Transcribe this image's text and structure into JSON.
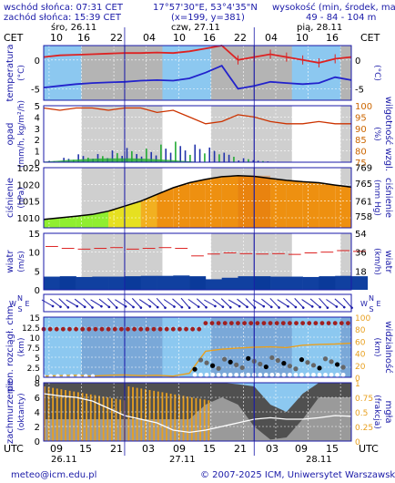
{
  "header": {
    "sunrise": "wschód słońca: 07:31 CET",
    "sunset": "zachód słońca: 15:39 CET",
    "coords": "17°57'30\"E, 53°4'35\"N",
    "grid": "(x=199, y=381)",
    "elevation_label": "wysokość (min, środek, max)",
    "elevation_values": "49 - 84 - 104 m"
  },
  "days": [
    "śro, 26.11",
    "czw, 27.11",
    "pią, 28.11"
  ],
  "tz_left": "CET",
  "tz_right": "CET",
  "tz_bottom_left": "UTC",
  "tz_bottom_right": "UTC",
  "cet_ticks": [
    "10",
    "16",
    "22",
    "04",
    "10",
    "16",
    "22",
    "04",
    "10",
    "16"
  ],
  "utc_ticks": [
    "09",
    "15",
    "21",
    "03",
    "09",
    "15",
    "21",
    "03",
    "09",
    "15"
  ],
  "utc_days": [
    "26.11",
    "27.11",
    "28.11"
  ],
  "footer": {
    "email": "meteo@icm.edu.pl",
    "copyright": "© 2007-2025 ICM, Uniwersytet Warszawski"
  },
  "panel_labels": {
    "temperature": [
      "temperatura",
      "(°C)"
    ],
    "temperature_right": "(°C)",
    "precip": [
      "opad",
      "(mm/h, kg/m²/h)"
    ],
    "humidity_right": [
      "(%)",
      "wilgotność wzgl."
    ],
    "pressure": [
      "ciśnienie",
      "(hPa)"
    ],
    "pressure_right": [
      "(mm Hg)",
      "ciśnienie"
    ],
    "wind": [
      "wiatr",
      "(m/s)"
    ],
    "wind_right": [
      "(km/h)",
      "wiatr"
    ],
    "visibility": [
      "pion. rozciągł. chm.",
      "(km)"
    ],
    "visibility_right": [
      "(km)",
      "widzialność"
    ],
    "cloud": [
      "zachmurzenie",
      "(oktanty)"
    ],
    "fog_right": [
      "(frakcja)",
      "mgła"
    ]
  },
  "colors": {
    "frame_blue": "#1a1aa8",
    "sky_blue": "#8cc8f0",
    "night_gray": "#b4b4b4",
    "temp_red": "#dd2222",
    "dew_blue": "#2222cc",
    "humidity_red": "#cc3300",
    "precip_blue": "#2233aa",
    "precip_green": "#22aa33",
    "wind_dark": "#1040a0",
    "cloud_dark": "#505050",
    "fog_orange": "#e8a020"
  },
  "chart_data": [
    {
      "type": "line",
      "name": "temperature",
      "x_hours": [
        0,
        3,
        6,
        9,
        12,
        15,
        18,
        21,
        24,
        27,
        30,
        33,
        36,
        39,
        42,
        45,
        48,
        51,
        54,
        57
      ],
      "series": [
        {
          "values": [
            0.5,
            0.8,
            0.9,
            1.0,
            1.1,
            1.2,
            1.2,
            1.3,
            1.2,
            1.5,
            2.0,
            2.5,
            0.0,
            0.5,
            1.0,
            0.5,
            0.0,
            -0.5,
            0.2,
            0.5
          ]
        },
        {
          "values": [
            -4.8,
            -4.5,
            -4.2,
            -4.0,
            -3.9,
            -3.8,
            -3.6,
            -3.5,
            -3.6,
            -3.2,
            -2.2,
            -1.0,
            -5.0,
            -4.5,
            -3.8,
            -4.0,
            -4.2,
            -4.0,
            -3.0,
            -3.5
          ]
        }
      ],
      "yticks": [
        0,
        -5
      ],
      "ytick_labels": [
        "0",
        "-5"
      ]
    },
    {
      "type": "bar",
      "name": "precipitation",
      "ylim": [
        0,
        5
      ],
      "yticks": [
        0,
        1,
        2,
        3,
        4,
        5
      ],
      "ytick_labels": [
        "0",
        "1",
        "2",
        "3",
        "4",
        "5"
      ],
      "y2ticks": [
        75,
        80,
        85,
        90,
        95,
        100
      ],
      "y2tick_labels": [
        "75",
        "80",
        "85",
        "90",
        "95",
        "100"
      ],
      "precip_values": [
        0.1,
        0.3,
        0.5,
        0.6,
        0.8,
        0.9,
        1.0,
        1.2,
        1.3,
        1.3,
        1.0,
        0.6,
        0.3,
        0.1,
        0,
        0,
        0,
        0,
        0,
        0
      ],
      "humidity": [
        99,
        98,
        99,
        99,
        98,
        99,
        99,
        97,
        98,
        95,
        92,
        93,
        96,
        95,
        93,
        92,
        92,
        93,
        92,
        92
      ]
    },
    {
      "type": "area",
      "name": "pressure",
      "ylim": [
        1007,
        1025
      ],
      "yticks": [
        1010,
        1015,
        1020,
        1025
      ],
      "ytick_labels": [
        "1010",
        "1015",
        "1020",
        "1025"
      ],
      "y2tick_labels": [
        "758",
        "761",
        "765",
        "769"
      ],
      "values": [
        1009.5,
        1010.0,
        1010.5,
        1011.0,
        1012.0,
        1013.5,
        1015.0,
        1017.0,
        1019.0,
        1020.5,
        1021.5,
        1022.3,
        1022.6,
        1022.4,
        1021.8,
        1021.2,
        1020.8,
        1020.5,
        1019.8,
        1019.2
      ]
    },
    {
      "type": "bar",
      "name": "wind",
      "ylim": [
        0,
        15
      ],
      "yticks": [
        0,
        5,
        10,
        15
      ],
      "ytick_labels": [
        "0",
        "5",
        "10",
        "15"
      ],
      "y2tick_labels": [
        "18",
        "36",
        "54"
      ],
      "speed": [
        3.5,
        3.6,
        3.4,
        3.5,
        3.5,
        3.6,
        3.7,
        3.7,
        3.8,
        3.6,
        2.8,
        3.2,
        3.6,
        3.6,
        3.5,
        3.5,
        3.4,
        3.6,
        3.7,
        3.6
      ],
      "gust": [
        11.5,
        11.0,
        10.8,
        11.0,
        11.2,
        10.8,
        11.0,
        11.2,
        11.0,
        9.0,
        9.5,
        9.8,
        9.6,
        9.5,
        9.6,
        9.4,
        9.8,
        10.0,
        10.4,
        10.2
      ]
    },
    {
      "type": "scatter",
      "name": "visibility",
      "ylim": [
        0,
        15
      ],
      "yticks": [
        0,
        2.5,
        5,
        7.5,
        10,
        12.5,
        15
      ],
      "ytick_labels": [
        "0",
        "2.5",
        "5",
        "7.5",
        "10",
        "12.5",
        "15"
      ],
      "y2tick_labels": [
        "0",
        "20",
        "40",
        "60",
        "80",
        "100"
      ]
    },
    {
      "type": "area",
      "name": "cloud cover",
      "ylim": [
        0,
        8
      ],
      "yticks": [
        0,
        2,
        4,
        6,
        8
      ],
      "ytick_labels": [
        "0",
        "2",
        "4",
        "6",
        "8"
      ],
      "y2tick_labels": [
        "0",
        "0.25",
        "0.5",
        "0.75",
        "1"
      ]
    }
  ]
}
